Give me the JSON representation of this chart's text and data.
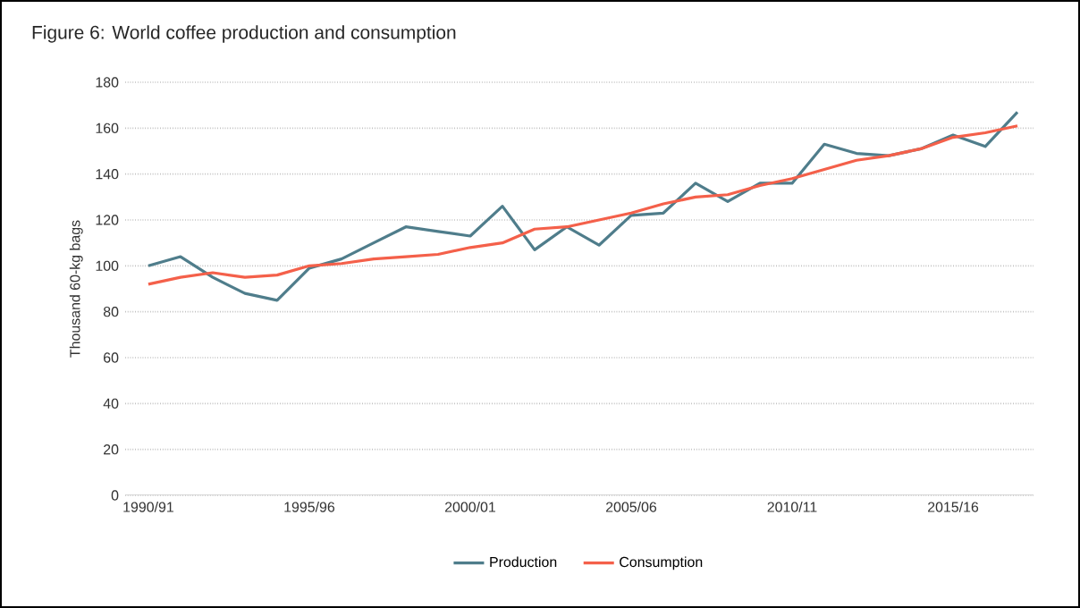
{
  "chart_data": {
    "type": "line",
    "title": "Figure 6: World coffee production and consumption",
    "ylabel": "Thousand 60-kg bags",
    "categories": [
      "1990/91",
      null,
      null,
      null,
      null,
      "1995/96",
      null,
      null,
      null,
      null,
      "2000/01",
      null,
      null,
      null,
      null,
      "2005/06",
      null,
      null,
      null,
      null,
      "2010/11",
      null,
      null,
      null,
      null,
      "2015/16",
      null,
      null
    ],
    "series": [
      {
        "name": "Production",
        "color": "#4f7d8b",
        "values": [
          100,
          104,
          95,
          88,
          85,
          99,
          103,
          110,
          117,
          115,
          113,
          126,
          107,
          117,
          109,
          122,
          123,
          136,
          128,
          136,
          136,
          153,
          149,
          148,
          151,
          157,
          152,
          167
        ]
      },
      {
        "name": "Consumption",
        "color": "#f4604a",
        "values": [
          92,
          95,
          97,
          95,
          96,
          100,
          101,
          103,
          104,
          105,
          108,
          110,
          116,
          117,
          120,
          123,
          127,
          130,
          131,
          135,
          138,
          142,
          146,
          148,
          151,
          156,
          158,
          161
        ]
      }
    ],
    "ylim": [
      0,
      180
    ],
    "yticks": [
      0,
      20,
      40,
      60,
      80,
      100,
      120,
      140,
      160,
      180
    ],
    "grid": "y",
    "legend": "bottom",
    "line_style": "solid",
    "marker": "none"
  }
}
